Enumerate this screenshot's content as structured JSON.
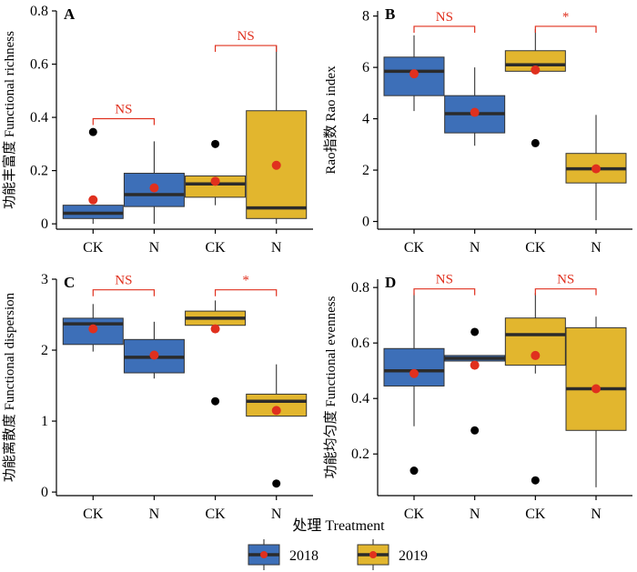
{
  "colors": {
    "2018": "#3d6fb8",
    "2019": "#e2b62e",
    "mean": "#e0301e",
    "significance": "#e0301e"
  },
  "x_axis_title": "处理 Treatment",
  "legend": [
    {
      "label": "2018",
      "color": "#3d6fb8"
    },
    {
      "label": "2019",
      "color": "#e2b62e"
    }
  ],
  "chart_data": [
    {
      "type": "box",
      "panel": "A",
      "ylabel": "功能丰富度 Functional richness",
      "categories": [
        "CK",
        "N",
        "CK",
        "N"
      ],
      "years": [
        "2018",
        "2018",
        "2019",
        "2019"
      ],
      "ylim": [
        -0.02,
        0.8
      ],
      "yticks": [
        0,
        0.2,
        0.4,
        0.6,
        0.8
      ],
      "ytick_labels": [
        "0",
        "0.2",
        "0.4",
        "0.6",
        "0.8"
      ],
      "boxes": [
        {
          "whisker_low": 0.0,
          "q1": 0.02,
          "median": 0.04,
          "q3": 0.07,
          "whisker_high": 0.07,
          "mean": 0.09,
          "outliers": [
            0.345
          ]
        },
        {
          "whisker_low": 0.0,
          "q1": 0.065,
          "median": 0.11,
          "q3": 0.19,
          "whisker_high": 0.31,
          "mean": 0.135,
          "outliers": []
        },
        {
          "whisker_low": 0.07,
          "q1": 0.1,
          "median": 0.15,
          "q3": 0.18,
          "whisker_high": 0.18,
          "mean": 0.16,
          "outliers": [
            0.3
          ]
        },
        {
          "whisker_low": 0.0,
          "q1": 0.02,
          "median": 0.06,
          "q3": 0.425,
          "whisker_high": 0.67,
          "mean": 0.22,
          "outliers": []
        }
      ],
      "comparisons": [
        {
          "pair": [
            0,
            1
          ],
          "label": "NS",
          "level": 0.395
        },
        {
          "pair": [
            2,
            3
          ],
          "label": "NS",
          "level": 0.67
        }
      ]
    },
    {
      "type": "box",
      "panel": "B",
      "ylabel": "Rao指数 Rao index",
      "categories": [
        "CK",
        "N",
        "CK",
        "N"
      ],
      "years": [
        "2018",
        "2018",
        "2019",
        "2019"
      ],
      "ylim": [
        -0.3,
        8.2
      ],
      "yticks": [
        0,
        2,
        4,
        6,
        8
      ],
      "ytick_labels": [
        "0",
        "2",
        "4",
        "6",
        "8"
      ],
      "boxes": [
        {
          "whisker_low": 4.3,
          "q1": 4.9,
          "median": 5.85,
          "q3": 6.4,
          "whisker_high": 7.25,
          "mean": 5.75,
          "outliers": []
        },
        {
          "whisker_low": 2.95,
          "q1": 3.45,
          "median": 4.2,
          "q3": 4.9,
          "whisker_high": 6.0,
          "mean": 4.25,
          "outliers": []
        },
        {
          "whisker_low": 5.8,
          "q1": 5.85,
          "median": 6.1,
          "q3": 6.65,
          "whisker_high": 7.5,
          "mean": 5.9,
          "outliers": [
            3.05
          ]
        },
        {
          "whisker_low": 0.05,
          "q1": 1.5,
          "median": 2.05,
          "q3": 2.65,
          "whisker_high": 4.15,
          "mean": 2.05,
          "outliers": []
        }
      ],
      "comparisons": [
        {
          "pair": [
            0,
            1
          ],
          "label": "NS",
          "level": 7.6
        },
        {
          "pair": [
            2,
            3
          ],
          "label": "*",
          "level": 7.6
        }
      ]
    },
    {
      "type": "box",
      "panel": "C",
      "ylabel": "功能离散度 Functional dispersion",
      "categories": [
        "CK",
        "N",
        "CK",
        "N"
      ],
      "years": [
        "2018",
        "2018",
        "2019",
        "2019"
      ],
      "ylim": [
        -0.05,
        3.0
      ],
      "yticks": [
        0,
        1,
        2,
        3
      ],
      "ytick_labels": [
        "0",
        "1",
        "2",
        "3"
      ],
      "boxes": [
        {
          "whisker_low": 1.98,
          "q1": 2.08,
          "median": 2.37,
          "q3": 2.45,
          "whisker_high": 2.65,
          "mean": 2.3,
          "outliers": []
        },
        {
          "whisker_low": 1.6,
          "q1": 1.68,
          "median": 1.9,
          "q3": 2.15,
          "whisker_high": 2.4,
          "mean": 1.93,
          "outliers": []
        },
        {
          "whisker_low": 2.35,
          "q1": 2.35,
          "median": 2.45,
          "q3": 2.55,
          "whisker_high": 2.7,
          "mean": 2.3,
          "outliers": [
            1.28
          ]
        },
        {
          "whisker_low": 1.07,
          "q1": 1.07,
          "median": 1.28,
          "q3": 1.38,
          "whisker_high": 1.8,
          "mean": 1.15,
          "outliers": [
            0.12
          ]
        }
      ],
      "comparisons": [
        {
          "pair": [
            0,
            1
          ],
          "label": "NS",
          "level": 2.85
        },
        {
          "pair": [
            2,
            3
          ],
          "label": "*",
          "level": 2.85
        }
      ]
    },
    {
      "type": "box",
      "panel": "D",
      "ylabel": "功能均匀度 Functional evenness",
      "categories": [
        "CK",
        "N",
        "CK",
        "N"
      ],
      "years": [
        "2018",
        "2018",
        "2019",
        "2019"
      ],
      "ylim": [
        0.05,
        0.83
      ],
      "yticks": [
        0.2,
        0.4,
        0.6,
        0.8
      ],
      "ytick_labels": [
        "0.2",
        "0.4",
        "0.6",
        "0.8"
      ],
      "boxes": [
        {
          "whisker_low": 0.3,
          "q1": 0.445,
          "median": 0.5,
          "q3": 0.58,
          "whisker_high": 0.78,
          "mean": 0.49,
          "outliers": [
            0.14
          ]
        },
        {
          "whisker_low": 0.535,
          "q1": 0.535,
          "median": 0.545,
          "q3": 0.555,
          "whisker_high": 0.555,
          "mean": 0.52,
          "outliers": [
            0.64,
            0.285
          ]
        },
        {
          "whisker_low": 0.49,
          "q1": 0.52,
          "median": 0.63,
          "q3": 0.69,
          "whisker_high": 0.78,
          "mean": 0.555,
          "outliers": [
            0.105
          ]
        },
        {
          "whisker_low": 0.08,
          "q1": 0.285,
          "median": 0.435,
          "q3": 0.655,
          "whisker_high": 0.695,
          "mean": 0.435,
          "outliers": []
        }
      ],
      "comparisons": [
        {
          "pair": [
            0,
            1
          ],
          "label": "NS",
          "level": 0.795
        },
        {
          "pair": [
            2,
            3
          ],
          "label": "NS",
          "level": 0.795
        }
      ]
    }
  ]
}
